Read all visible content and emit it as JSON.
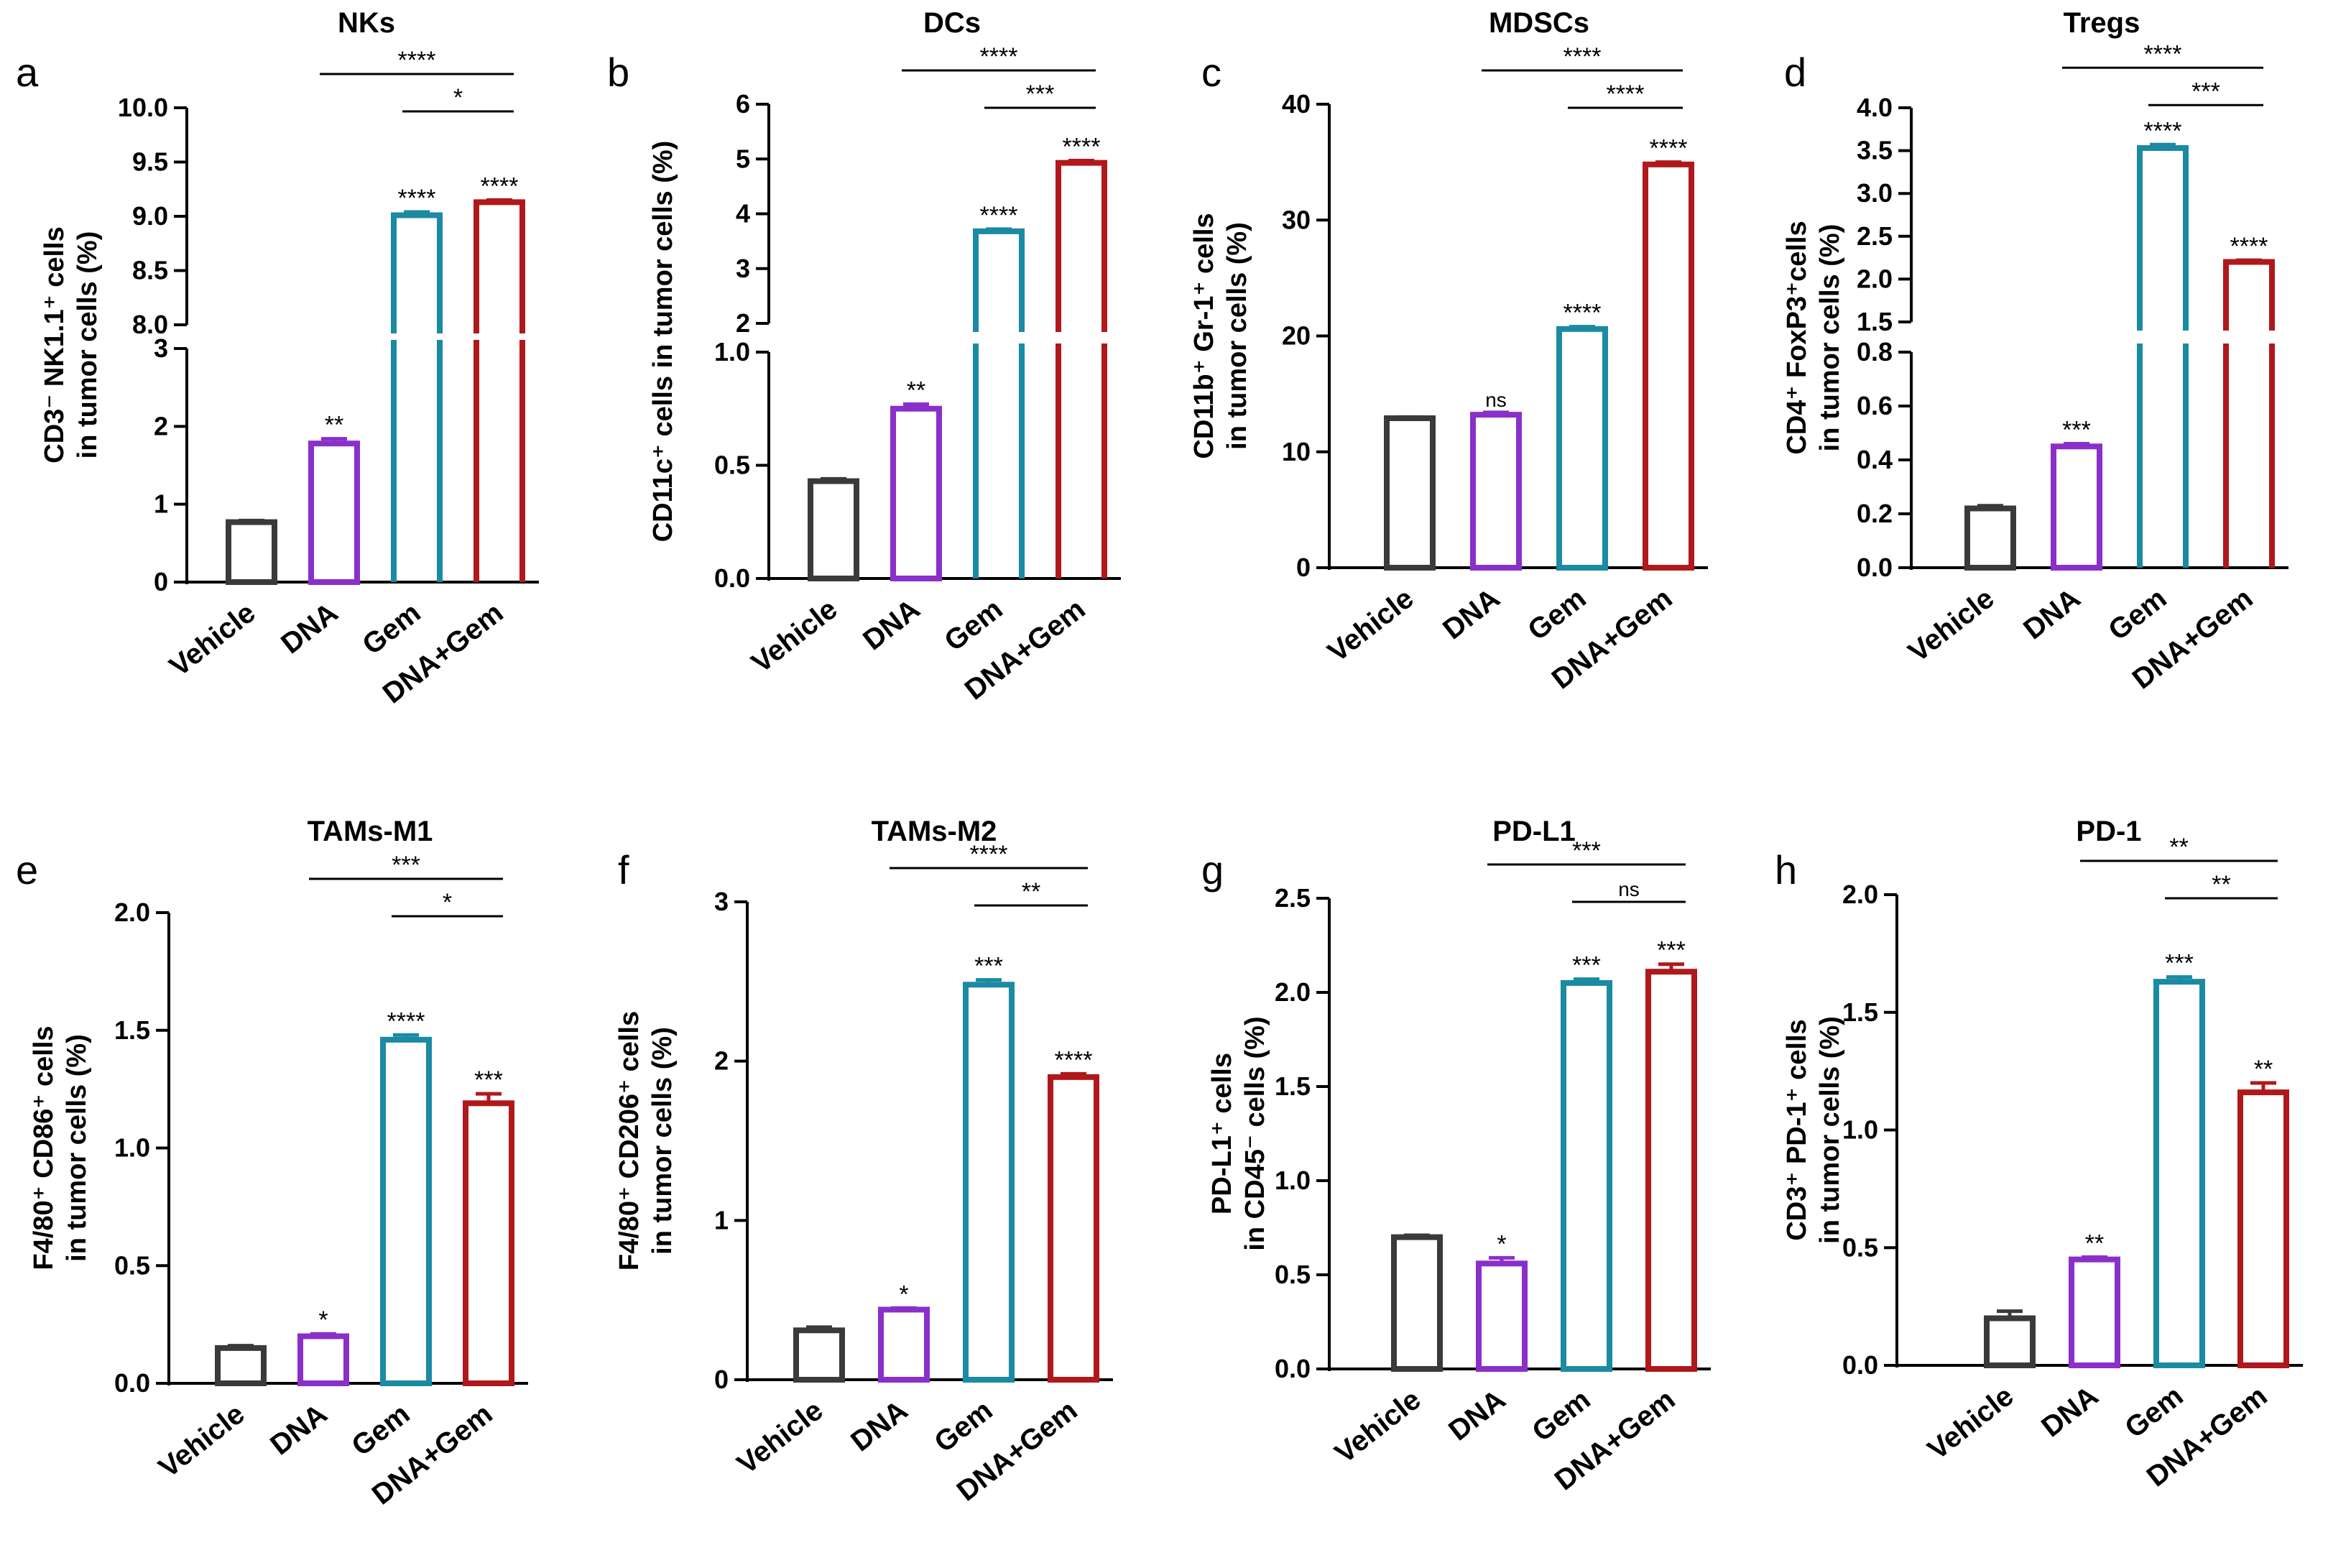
{
  "colors": {
    "Vehicle": "#3a3a3a",
    "DNA": "#8b2fc9",
    "Gem": "#1b8aa3",
    "DNA+Gem": "#b0181b",
    "axis": "#000000"
  },
  "chart_data": [
    {
      "id": "a",
      "type": "bar",
      "title": "NKs",
      "ylabel": [
        "CD3⁻ NK1.1⁺ cells",
        "in tumor cells (%)"
      ],
      "categories": [
        "Vehicle",
        "DNA",
        "Gem",
        "DNA+Gem"
      ],
      "values": [
        0.77,
        1.78,
        9.01,
        9.13
      ],
      "errors": [
        0.02,
        0.06,
        0.03,
        0.02
      ],
      "y_segments": [
        {
          "min": 0,
          "max": 3,
          "ticks": [
            "0",
            "1",
            "2",
            "3"
          ]
        },
        {
          "min": 8.0,
          "max": 10.0,
          "ticks": [
            "8.0",
            "8.5",
            "9.0",
            "9.5",
            "10.0"
          ]
        }
      ],
      "bar_annotations": [
        "",
        "**",
        "****",
        "****"
      ],
      "comparisons": [
        {
          "from": 1,
          "to": 3,
          "label": "****"
        },
        {
          "from": 2,
          "to": 3,
          "label": "*"
        }
      ]
    },
    {
      "id": "b",
      "type": "bar",
      "title": "DCs",
      "ylabel": [
        "CD11c⁺ cells in tumor cells (%)"
      ],
      "categories": [
        "Vehicle",
        "DNA",
        "Gem",
        "DNA+Gem"
      ],
      "values": [
        0.43,
        0.75,
        3.68,
        4.93
      ],
      "errors": [
        0.01,
        0.02,
        0.04,
        0.04
      ],
      "y_segments": [
        {
          "min": 0,
          "max": 1.0,
          "ticks": [
            "0.0",
            "0.5",
            "1.0"
          ]
        },
        {
          "min": 2,
          "max": 6,
          "ticks": [
            "2",
            "3",
            "4",
            "5",
            "6"
          ]
        }
      ],
      "bar_annotations": [
        "",
        "**",
        "****",
        "****"
      ],
      "comparisons": [
        {
          "from": 1,
          "to": 3,
          "label": "****"
        },
        {
          "from": 2,
          "to": 3,
          "label": "***"
        }
      ]
    },
    {
      "id": "c",
      "type": "bar",
      "title": "MDSCs",
      "ylabel": [
        "CD11b⁺ Gr-1⁺ cells",
        "in tumor cells (%)"
      ],
      "categories": [
        "Vehicle",
        "DNA",
        "Gem",
        "DNA+Gem"
      ],
      "values": [
        12.9,
        13.2,
        20.6,
        34.8
      ],
      "errors": [
        0.1,
        0.2,
        0.2,
        0.2
      ],
      "y_segments": [
        {
          "min": 0,
          "max": 40,
          "ticks": [
            "0",
            "10",
            "20",
            "30",
            "40"
          ]
        }
      ],
      "bar_annotations": [
        "",
        "ns",
        "****",
        "****"
      ],
      "comparisons": [
        {
          "from": 1,
          "to": 3,
          "label": "****"
        },
        {
          "from": 2,
          "to": 3,
          "label": "****"
        }
      ]
    },
    {
      "id": "d",
      "type": "bar",
      "title": "Tregs",
      "ylabel": [
        "CD4⁺ FoxP3⁺cells",
        "in tumor cells (%)"
      ],
      "categories": [
        "Vehicle",
        "DNA",
        "Gem",
        "DNA+Gem"
      ],
      "values": [
        0.22,
        0.45,
        3.53,
        2.2
      ],
      "errors": [
        0.01,
        0.01,
        0.04,
        0.02
      ],
      "y_segments": [
        {
          "min": 0,
          "max": 0.8,
          "ticks": [
            "0.0",
            "0.2",
            "0.4",
            "0.6",
            "0.8"
          ]
        },
        {
          "min": 1.5,
          "max": 4.0,
          "ticks": [
            "1.5",
            "2.0",
            "2.5",
            "3.0",
            "3.5",
            "4.0"
          ]
        }
      ],
      "bar_annotations": [
        "",
        "***",
        "****",
        "****"
      ],
      "comparisons": [
        {
          "from": 1,
          "to": 3,
          "label": "****"
        },
        {
          "from": 2,
          "to": 3,
          "label": "***"
        }
      ]
    },
    {
      "id": "e",
      "type": "bar",
      "title": "TAMs-M1",
      "ylabel": [
        "F4/80⁺ CD86⁺ cells",
        "in tumor cells (%)"
      ],
      "categories": [
        "Vehicle",
        "DNA",
        "Gem",
        "DNA+Gem"
      ],
      "values": [
        0.15,
        0.2,
        1.46,
        1.19
      ],
      "errors": [
        0.01,
        0.01,
        0.02,
        0.04
      ],
      "y_segments": [
        {
          "min": 0,
          "max": 2.0,
          "ticks": [
            "0.0",
            "0.5",
            "1.0",
            "1.5",
            "2.0"
          ]
        }
      ],
      "bar_annotations": [
        "",
        "*",
        "****",
        "***"
      ],
      "comparisons": [
        {
          "from": 1,
          "to": 3,
          "label": "***"
        },
        {
          "from": 2,
          "to": 3,
          "label": "*"
        }
      ]
    },
    {
      "id": "f",
      "type": "bar",
      "title": "TAMs-M2",
      "ylabel": [
        "F4/80⁺ CD206⁺ cells",
        "in tumor cells (%)"
      ],
      "categories": [
        "Vehicle",
        "DNA",
        "Gem",
        "DNA+Gem"
      ],
      "values": [
        0.31,
        0.44,
        2.48,
        1.9
      ],
      "errors": [
        0.02,
        0.01,
        0.03,
        0.02
      ],
      "y_segments": [
        {
          "min": 0,
          "max": 3,
          "ticks": [
            "0",
            "1",
            "2",
            "3"
          ]
        }
      ],
      "bar_annotations": [
        "",
        "*",
        "***",
        "****"
      ],
      "comparisons": [
        {
          "from": 1,
          "to": 3,
          "label": "****"
        },
        {
          "from": 2,
          "to": 3,
          "label": "**"
        }
      ]
    },
    {
      "id": "g",
      "type": "bar",
      "title": "PD-L1",
      "ylabel": [
        "PD-L1⁺ cells",
        "in CD45⁻ cells (%)"
      ],
      "categories": [
        "Vehicle",
        "DNA",
        "Gem",
        "DNA+Gem"
      ],
      "values": [
        0.7,
        0.56,
        2.05,
        2.11
      ],
      "errors": [
        0.01,
        0.03,
        0.02,
        0.04
      ],
      "y_segments": [
        {
          "min": 0,
          "max": 2.5,
          "ticks": [
            "0.0",
            "0.5",
            "1.0",
            "1.5",
            "2.0",
            "2.5"
          ]
        }
      ],
      "bar_annotations": [
        "",
        "*",
        "***",
        "***"
      ],
      "comparisons": [
        {
          "from": 1,
          "to": 3,
          "label": "***"
        },
        {
          "from": 2,
          "to": 3,
          "label": "ns"
        }
      ]
    },
    {
      "id": "h",
      "type": "bar",
      "title": "PD-1",
      "ylabel": [
        "CD3⁺ PD-1⁺ cells",
        "in tumor cells (%)"
      ],
      "categories": [
        "Vehicle",
        "DNA",
        "Gem",
        "DNA+Gem"
      ],
      "values": [
        0.2,
        0.45,
        1.63,
        1.16
      ],
      "errors": [
        0.03,
        0.01,
        0.02,
        0.04
      ],
      "y_segments": [
        {
          "min": 0,
          "max": 2.0,
          "ticks": [
            "0.0",
            "0.5",
            "1.0",
            "1.5",
            "2.0"
          ]
        }
      ],
      "bar_annotations": [
        "",
        "**",
        "***",
        "**"
      ],
      "comparisons": [
        {
          "from": 1,
          "to": 3,
          "label": "**"
        },
        {
          "from": 2,
          "to": 3,
          "label": "**"
        }
      ]
    }
  ]
}
